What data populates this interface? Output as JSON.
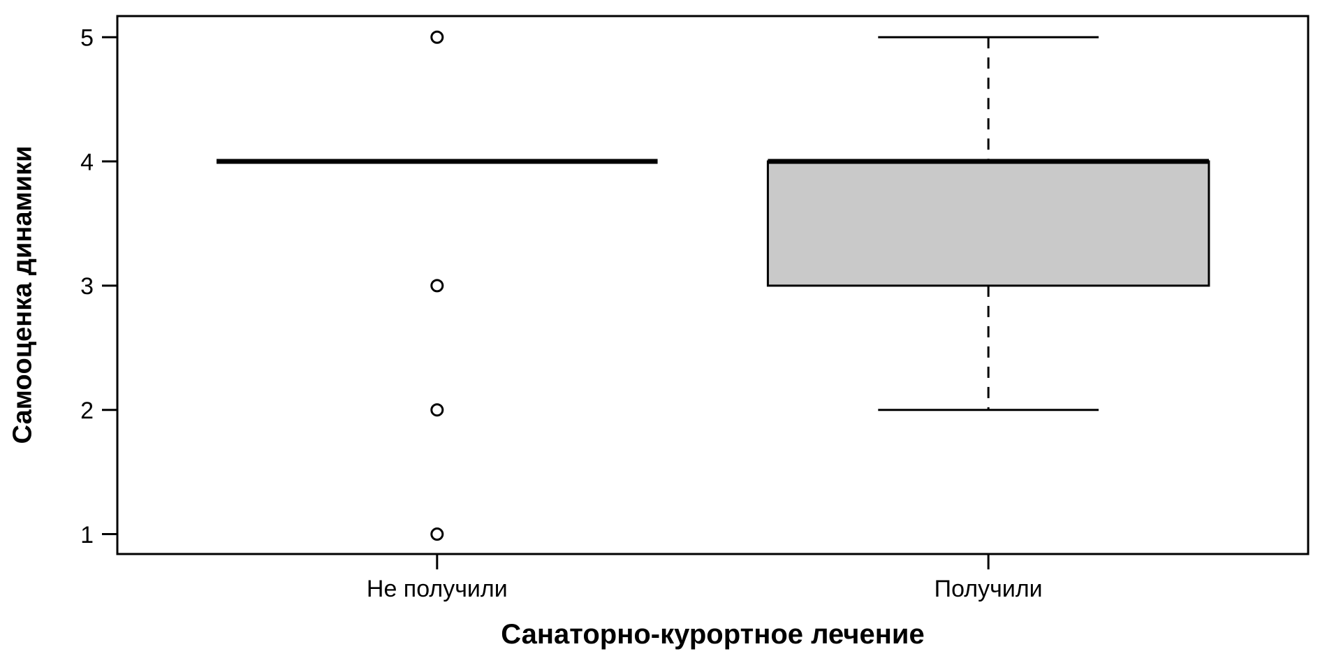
{
  "chart_data": {
    "type": "boxplot",
    "xlabel": "Санаторно-курортное лечение",
    "ylabel": "Самооценка динамики",
    "yticks": [
      1,
      2,
      3,
      4,
      5
    ],
    "ylim": [
      0.84,
      5.17
    ],
    "xlim": [
      0.42,
      2.58
    ],
    "box_width": 0.8,
    "staple_width": 0.4,
    "grid": false,
    "legend": "none",
    "groups": [
      {
        "label": "Не получили",
        "position": 1,
        "q1": 4,
        "median": 4,
        "q3": 4,
        "whisker_low": 4,
        "whisker_high": 4,
        "outliers": [
          5,
          3,
          2,
          1
        ]
      },
      {
        "label": "Получили",
        "position": 2,
        "q1": 3,
        "median": 4,
        "q3": 4,
        "whisker_low": 2,
        "whisker_high": 5,
        "outliers": []
      }
    ],
    "colors": {
      "line": "#000000",
      "box_fill": "#c9c9c9",
      "background": "#ffffff"
    }
  }
}
